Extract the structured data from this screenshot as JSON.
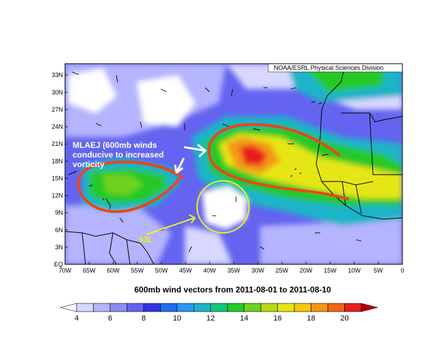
{
  "map": {
    "credit": "NOAA/ESRL Physical Sciences Division",
    "lat_labels": [
      "33N",
      "30N",
      "27N",
      "24N",
      "21N",
      "18N",
      "15N",
      "12N",
      "9N",
      "6N",
      "3N",
      "EQ"
    ],
    "lon_labels": [
      "70W",
      "65W",
      "60W",
      "55W",
      "50W",
      "45W",
      "40W",
      "35W",
      "30W",
      "25W",
      "20W",
      "15W",
      "10W",
      "5W",
      "0"
    ],
    "extent": {
      "lon_min": -70,
      "lon_max": 0,
      "lat_min": 0,
      "lat_max": 35
    }
  },
  "annotations": {
    "mlaej_lines": [
      "MLAEJ (600mb winds",
      "conducive to increased",
      "vorticity"
    ],
    "storm_label": "93L",
    "annotation_color": "#ffffff",
    "storm_color": "#f0f020",
    "contour_color": "#e8461e"
  },
  "caption": "600mb wind vectors from 2011-08-01 to 2011-08-10",
  "colorbar": {
    "labels": [
      "4",
      "6",
      "8",
      "10",
      "12",
      "14",
      "16",
      "18",
      "20"
    ],
    "colors": [
      "#ffffff",
      "#d7d7ff",
      "#b4b4ff",
      "#8c8cf5",
      "#6464f0",
      "#3232e1",
      "#1e6ef0",
      "#2896fa",
      "#1eb4c8",
      "#14c878",
      "#28c828",
      "#6ed21e",
      "#b4dc14",
      "#e6e614",
      "#f5c80a",
      "#f59614",
      "#f06414",
      "#e61e1e",
      "#b40000"
    ]
  }
}
